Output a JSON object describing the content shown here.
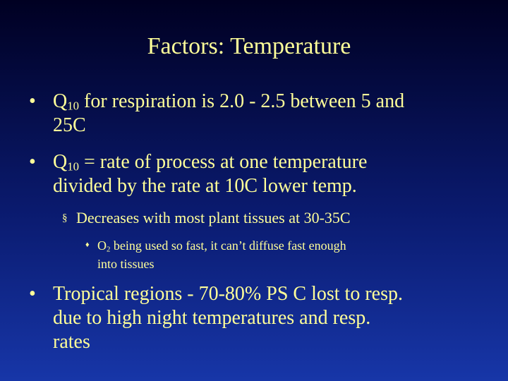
{
  "slide": {
    "title": "Factors: Temperature",
    "bullet1": {
      "marker": "•",
      "q": "Q",
      "sub": "10",
      "line1_rest": " for respiration is 2.0 - 2.5 between 5 and",
      "line2": "25C"
    },
    "bullet2": {
      "marker": "•",
      "q": "Q",
      "sub": "10",
      "line1_rest": " = rate of process at one temperature",
      "line2": "divided by the rate at 10C lower temp."
    },
    "sub_bullet": {
      "marker": "§",
      "text": "Decreases with most plant tissues at 30-35C"
    },
    "sub_sub_bullet": {
      "marker": "♦",
      "o": "O",
      "sub": "2",
      "line1_rest": " being used so fast, it can’t diffuse fast enough",
      "line2": "into tissues"
    },
    "bullet3": {
      "marker": "•",
      "line1": "Tropical regions - 70-80% PS C lost to resp.",
      "line2": "due to high night temperatures and resp.",
      "line3": "rates"
    }
  }
}
